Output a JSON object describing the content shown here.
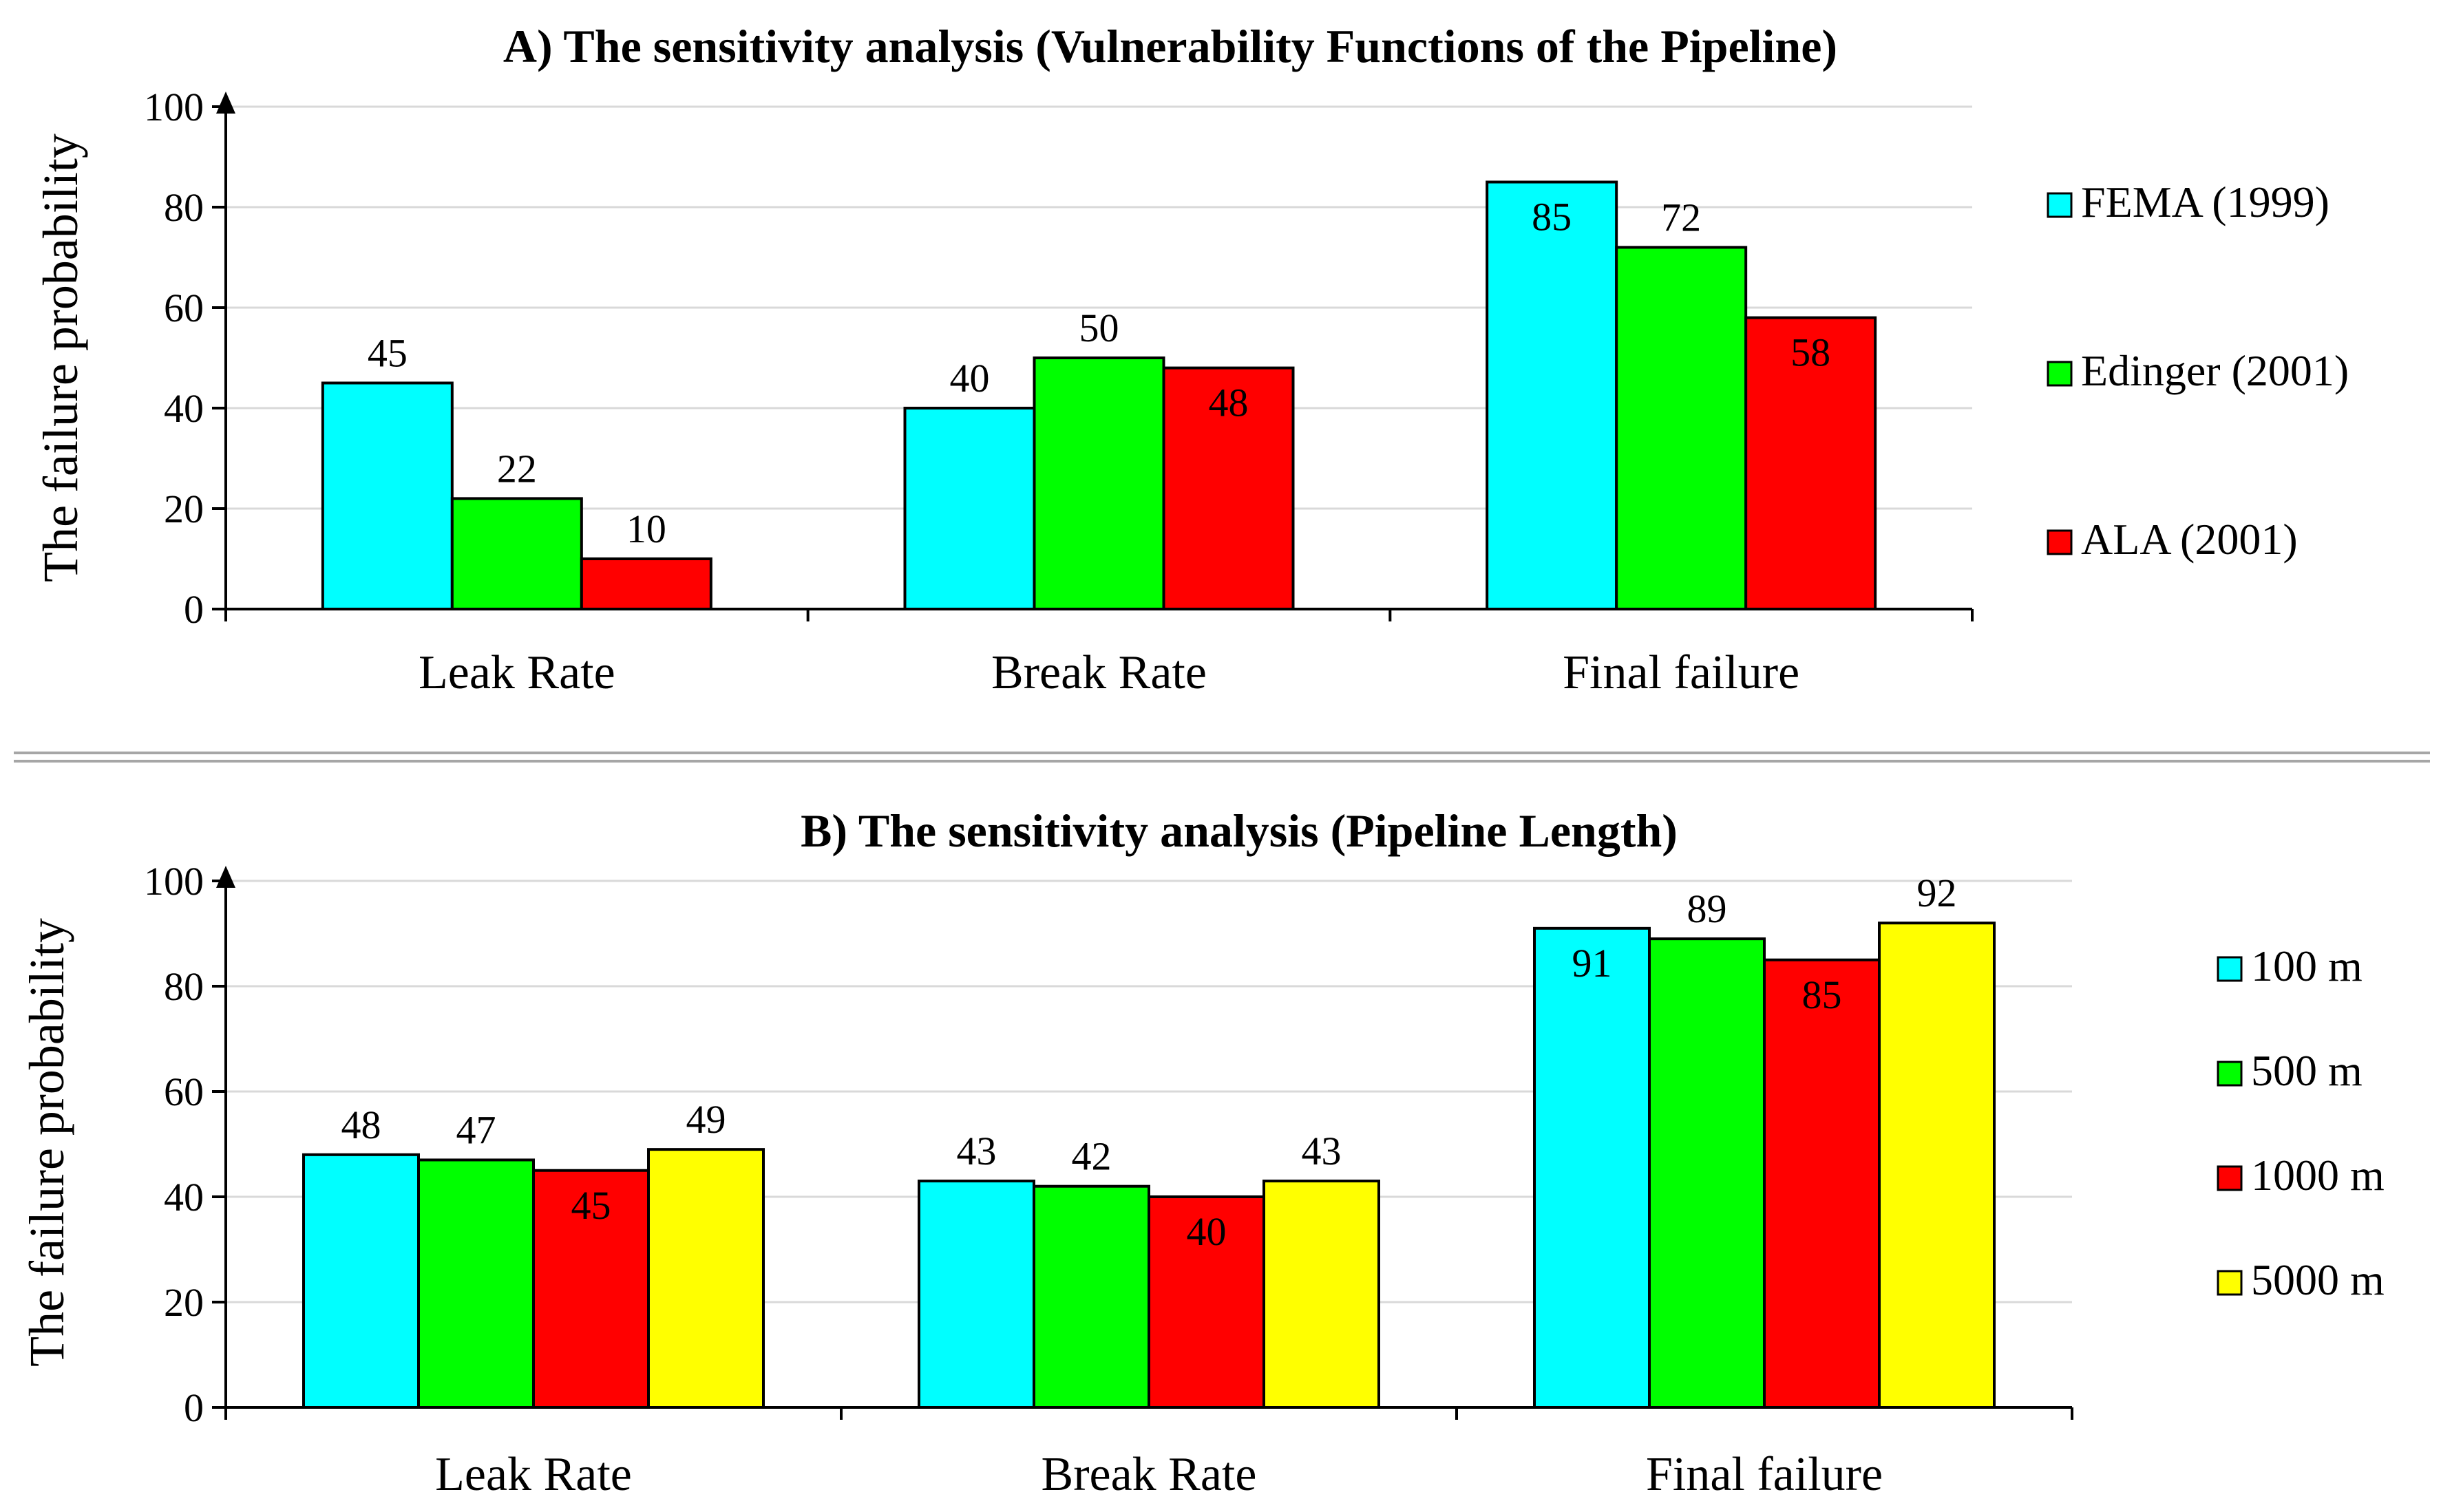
{
  "chart_data": [
    {
      "type": "bar",
      "title": "A) The sensitivity analysis (Vulnerability Functions of the Pipeline)",
      "ylabel": "The failure probability",
      "xlabel": "",
      "ylim": [
        0,
        100
      ],
      "yticks": [
        0,
        20,
        40,
        60,
        80,
        100
      ],
      "categories": [
        "Leak Rate",
        "Break Rate",
        "Final failure"
      ],
      "series": [
        {
          "name": "FEMA (1999)",
          "color": "#00FFFF",
          "values": [
            45,
            40,
            85
          ]
        },
        {
          "name": "Edinger (2001)",
          "color": "#00FF00",
          "values": [
            22,
            50,
            72
          ]
        },
        {
          "name": "ALA (2001)",
          "color": "#FF0000",
          "values": [
            10,
            48,
            58
          ]
        }
      ],
      "legend_position": "right",
      "grid": true
    },
    {
      "type": "bar",
      "title": "B) The sensitivity analysis (Pipeline Length)",
      "ylabel": "The failure probability",
      "xlabel": "",
      "ylim": [
        0,
        100
      ],
      "yticks": [
        0,
        20,
        40,
        60,
        80,
        100
      ],
      "categories": [
        "Leak Rate",
        "Break Rate",
        "Final failure"
      ],
      "series": [
        {
          "name": "100 m",
          "color": "#00FFFF",
          "values": [
            48,
            43,
            91
          ]
        },
        {
          "name": "500 m",
          "color": "#00FF00",
          "values": [
            47,
            42,
            89
          ]
        },
        {
          "name": "1000 m",
          "color": "#FF0000",
          "values": [
            45,
            40,
            85
          ]
        },
        {
          "name": "5000 m",
          "color": "#FFFF00",
          "values": [
            49,
            43,
            92
          ]
        }
      ],
      "legend_position": "right",
      "grid": true
    }
  ]
}
